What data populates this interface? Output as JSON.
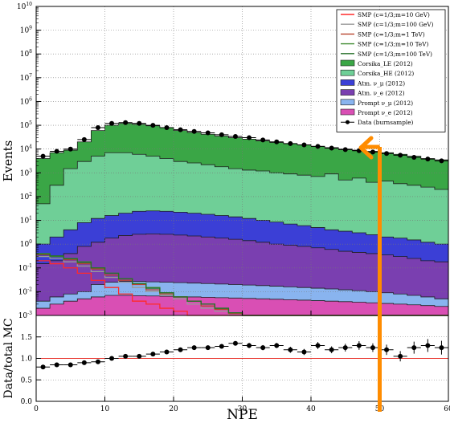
{
  "chart_data": [
    {
      "type": "area",
      "ylabel": "Events",
      "yscale": "log",
      "xlim": [
        0,
        60
      ],
      "ylim": [
        0.001,
        10000000000
      ],
      "grid": true,
      "legend_position": "top-right",
      "x_ticks": [
        "0",
        "10",
        "20",
        "30",
        "40",
        "50",
        "60"
      ],
      "y_ticks": [
        "10^-3",
        "10^-2",
        "10^-1",
        "10^0",
        "10^1",
        "10^2",
        "10^3",
        "10^4",
        "10^5",
        "10^6",
        "10^7",
        "10^8",
        "10^9",
        "10^10"
      ],
      "legend": [
        {
          "label": "SMP (c=1/3;m=10 GeV)",
          "kind": "line",
          "color": "#ff2a2a"
        },
        {
          "label": "SMP (c=1/3;m=100 GeV)",
          "kind": "line",
          "color": "#9a9a9a"
        },
        {
          "label": "SMP (c=1/3;m=1 TeV)",
          "kind": "line",
          "color": "#b8432e"
        },
        {
          "label": "SMP (c=1/3;m=10 TeV)",
          "kind": "line",
          "color": "#3e8a2e"
        },
        {
          "label": "SMP (c=1/3;m=100 TeV)",
          "kind": "line",
          "color": "#27702a"
        },
        {
          "label": "Corsika_LE (2012)",
          "kind": "patch",
          "color": "#3aa646"
        },
        {
          "label": "Corsika_HE (2012)",
          "kind": "patch",
          "color": "#6fcf97"
        },
        {
          "label": "Atm. ν_μ (2012)",
          "kind": "patch",
          "color": "#3b3fd6"
        },
        {
          "label": "Atm. ν_e (2012)",
          "kind": "patch",
          "color": "#7a3fb0"
        },
        {
          "label": "Prompt ν_μ (2012)",
          "kind": "patch",
          "color": "#89b4ef"
        },
        {
          "label": "Prompt ν_e (2012)",
          "kind": "patch",
          "color": "#d94fb4"
        },
        {
          "label": "Data (burnsample)",
          "kind": "marker",
          "color": "#000000"
        }
      ],
      "bin_edges": [
        0,
        2,
        4,
        6,
        8,
        10,
        12,
        14,
        16,
        18,
        20,
        22,
        24,
        26,
        28,
        30,
        32,
        34,
        36,
        38,
        40,
        42,
        44,
        46,
        48,
        50,
        52,
        54,
        56,
        58,
        60
      ],
      "stack_totals": [
        {
          "name": "Corsika_LE (2012)",
          "color": "#3aa646",
          "values": [
            4000,
            7000,
            9000,
            20000,
            60000,
            100000,
            120000,
            110000,
            95000,
            80000,
            60000,
            50000,
            42000,
            35000,
            30000,
            26000,
            22000,
            19000,
            17000,
            15000,
            13000,
            11500,
            10000,
            9000,
            8000,
            7000,
            6000,
            5000,
            4000,
            3500
          ]
        },
        {
          "name": "Corsika_HE (2012)",
          "color": "#6fcf97",
          "values": [
            50,
            300,
            1500,
            3000,
            5000,
            7000,
            7000,
            6000,
            5000,
            4000,
            3000,
            2600,
            2200,
            1800,
            1500,
            1300,
            1200,
            1000,
            900,
            800,
            700,
            900,
            500,
            600,
            400,
            450,
            350,
            300,
            250,
            200
          ]
        },
        {
          "name": "Atm. ν_μ (2012)",
          "color": "#3b3fd6",
          "values": [
            1,
            2,
            4,
            8,
            12,
            16,
            20,
            24,
            25,
            24,
            22,
            20,
            18,
            16,
            14,
            12,
            10,
            8.5,
            7,
            6,
            5,
            4,
            3.5,
            3,
            2.5,
            2,
            1.8,
            1.5,
            1.2,
            1
          ]
        },
        {
          "name": "Atm. ν_e (2012)",
          "color": "#7a3fb0",
          "values": [
            0.15,
            0.2,
            0.4,
            0.8,
            1.2,
            1.8,
            2.3,
            2.6,
            2.7,
            2.6,
            2.4,
            2.2,
            2,
            1.8,
            1.6,
            1.4,
            1.2,
            1,
            0.9,
            0.8,
            0.7,
            0.6,
            0.5,
            0.45,
            0.4,
            0.35,
            0.3,
            0.25,
            0.2,
            0.18
          ]
        },
        {
          "name": "Prompt ν_μ (2012)",
          "color": "#89b4ef",
          "values": [
            0.004,
            0.006,
            0.008,
            0.01,
            0.02,
            0.025,
            0.027,
            0.027,
            0.026,
            0.025,
            0.024,
            0.023,
            0.022,
            0.021,
            0.02,
            0.019,
            0.018,
            0.017,
            0.016,
            0.015,
            0.014,
            0.013,
            0.012,
            0.011,
            0.01,
            0.009,
            0.008,
            0.007,
            0.006,
            0.005
          ]
        },
        {
          "name": "Prompt ν_e (2012)",
          "color": "#d94fb4",
          "values": [
            0.002,
            0.003,
            0.004,
            0.005,
            0.006,
            0.007,
            0.007,
            0.0068,
            0.0066,
            0.0064,
            0.0062,
            0.006,
            0.0058,
            0.0056,
            0.0054,
            0.0052,
            0.005,
            0.0048,
            0.0046,
            0.0044,
            0.0042,
            0.004,
            0.0038,
            0.0036,
            0.0034,
            0.0032,
            0.003,
            0.0028,
            0.0026,
            0.0024
          ]
        }
      ],
      "smp_lines": [
        {
          "name": "SMP (c=1/3;m=10 GeV)",
          "color": "#ff2a2a",
          "values": [
            0.2,
            0.15,
            0.1,
            0.06,
            0.03,
            0.015,
            0.008,
            0.004,
            0.003,
            0.002,
            0.0015,
            0.001,
            0.0009,
            0.0008,
            0.0007,
            0.0006,
            0.0005,
            0.0004,
            0.0003,
            0.0002,
            0.0002,
            0.0001,
            0.0001,
            0.0001,
            0.0001,
            0.0001,
            0.0001,
            0.0001,
            0.0001,
            0.0001
          ]
        },
        {
          "name": "SMP (c=1/3;m=100 GeV)",
          "color": "#9a9a9a",
          "values": [
            0.3,
            0.25,
            0.18,
            0.12,
            0.07,
            0.04,
            0.025,
            0.015,
            0.01,
            0.007,
            0.005,
            0.003,
            0.002,
            0.0015,
            0.001,
            0.0008,
            0.0006,
            0.0004,
            0.0003,
            0.0002,
            0.0002,
            0.0001,
            0.0001,
            0.0001,
            0.0001,
            0.0001,
            0.0001,
            0.0001,
            0.0001,
            0.0001
          ]
        },
        {
          "name": "SMP (c=1/3;m=1 TeV)",
          "color": "#b8432e",
          "values": [
            0.35,
            0.3,
            0.22,
            0.15,
            0.09,
            0.05,
            0.03,
            0.02,
            0.012,
            0.008,
            0.006,
            0.004,
            0.0025,
            0.0018,
            0.0012,
            0.0009,
            0.0006,
            0.0004,
            0.0003,
            0.0002,
            0.0002,
            0.0001,
            0.0001,
            0.0001,
            0.0001,
            0.0001,
            0.0001,
            0.0001,
            0.0001,
            0.0001
          ]
        },
        {
          "name": "SMP (c=1/3;m=10 TeV)",
          "color": "#3e8a2e",
          "values": [
            0.4,
            0.3,
            0.25,
            0.18,
            0.1,
            0.06,
            0.035,
            0.022,
            0.015,
            0.009,
            0.006,
            0.004,
            0.003,
            0.002,
            0.0013,
            0.001,
            0.0007,
            0.0005,
            0.0003,
            0.0002,
            0.0002,
            0.0001,
            0.0001,
            0.0001,
            0.0001,
            0.0001,
            0.0001,
            0.0001,
            0.0001,
            0.0001
          ]
        },
        {
          "name": "SMP (c=1/3;m=100 TeV)",
          "color": "#27702a",
          "values": [
            0.38,
            0.32,
            0.24,
            0.17,
            0.1,
            0.06,
            0.035,
            0.022,
            0.014,
            0.009,
            0.006,
            0.004,
            0.003,
            0.002,
            0.0013,
            0.001,
            0.0007,
            0.0005,
            0.0003,
            0.0002,
            0.0002,
            0.0001,
            0.0001,
            0.0001,
            0.0001,
            0.0001,
            0.0001,
            0.0001,
            0.0001,
            0.0001
          ]
        }
      ],
      "data_points": {
        "name": "Data (burnsample)",
        "x": [
          1,
          3,
          5,
          7,
          9,
          11,
          13,
          15,
          17,
          19,
          21,
          23,
          25,
          27,
          29,
          31,
          33,
          35,
          37,
          39,
          41,
          43,
          45,
          47,
          49,
          51,
          53,
          55,
          57,
          59
        ],
        "y": [
          5000,
          8000,
          10000,
          25000,
          80000,
          120000,
          130000,
          120000,
          100000,
          80000,
          65000,
          55000,
          48000,
          40000,
          34000,
          30000,
          24000,
          20000,
          17000,
          15000,
          13000,
          11000,
          9500,
          8500,
          7500,
          6500,
          5500,
          4500,
          3800,
          3200
        ]
      }
    },
    {
      "type": "scatter",
      "xlabel": "NPE",
      "ylabel": "Data/total MC",
      "xlim": [
        0,
        60
      ],
      "ylim": [
        0,
        2
      ],
      "grid": true,
      "x_ticks": [
        "0",
        "10",
        "20",
        "30",
        "40",
        "50",
        "60"
      ],
      "y_ticks": [
        "0.0",
        "0.5",
        "1.0",
        "1.5"
      ],
      "reference_line": 1.0,
      "x": [
        1,
        3,
        5,
        7,
        9,
        11,
        13,
        15,
        17,
        19,
        21,
        23,
        25,
        27,
        29,
        31,
        33,
        35,
        37,
        39,
        41,
        43,
        45,
        47,
        49,
        51,
        53,
        55,
        57,
        59
      ],
      "y": [
        0.8,
        0.85,
        0.85,
        0.9,
        0.92,
        1.0,
        1.05,
        1.05,
        1.1,
        1.15,
        1.2,
        1.25,
        1.25,
        1.28,
        1.35,
        1.3,
        1.25,
        1.3,
        1.2,
        1.15,
        1.3,
        1.2,
        1.25,
        1.3,
        1.25,
        1.2,
        1.05,
        1.25,
        1.3,
        1.25
      ],
      "yerr": [
        0.04,
        0.03,
        0.03,
        0.03,
        0.03,
        0.03,
        0.03,
        0.03,
        0.03,
        0.04,
        0.04,
        0.04,
        0.05,
        0.05,
        0.05,
        0.06,
        0.06,
        0.06,
        0.07,
        0.07,
        0.08,
        0.08,
        0.09,
        0.1,
        0.1,
        0.12,
        0.12,
        0.14,
        0.15,
        0.16
      ]
    }
  ],
  "annotation": {
    "kind": "arrow",
    "color": "#ff8c00",
    "x_value": 50,
    "description": "orange arrow pointing up-left"
  }
}
